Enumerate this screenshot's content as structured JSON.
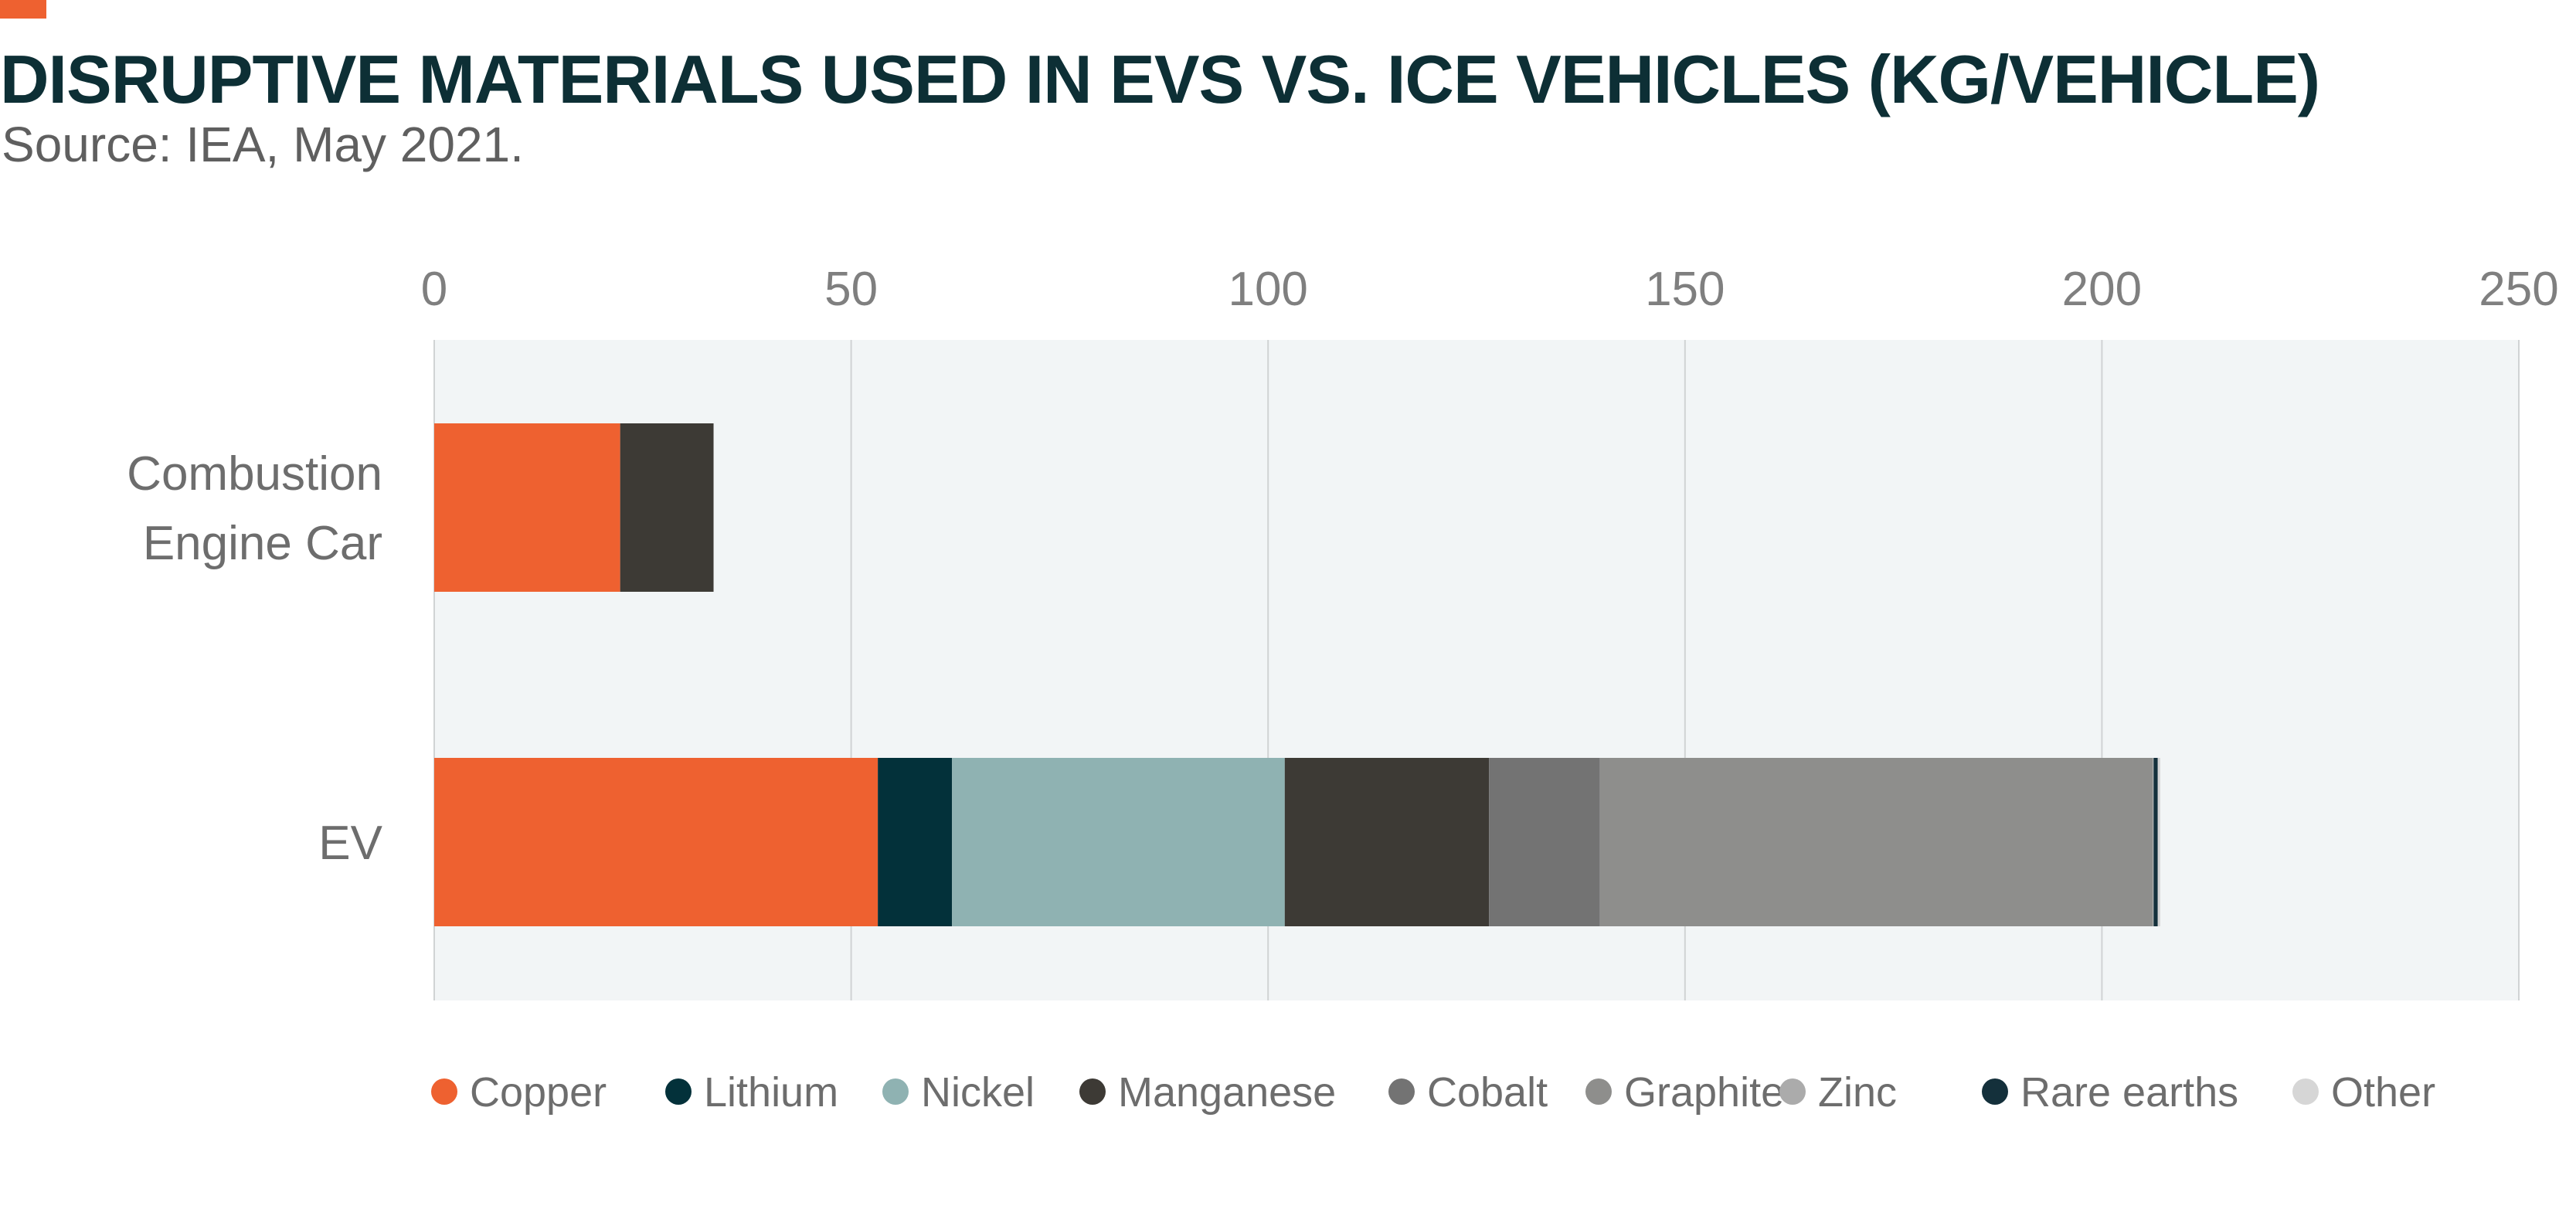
{
  "header": {
    "title": "DISRUPTIVE MATERIALS USED IN EVS VS. ICE VEHICLES (KG/VEHICLE)",
    "subtitle": "Source: IEA, May 2021."
  },
  "colors": {
    "accent": "#ee6130",
    "title": "#0d2f35",
    "plot_background": "#f2f5f6",
    "gridline": "#d0d3d4"
  },
  "chart_data": {
    "type": "bar",
    "orientation": "horizontal",
    "stacked": true,
    "title": "DISRUPTIVE MATERIALS USED IN EVS VS. ICE VEHICLES (KG/VEHICLE)",
    "subtitle": "Source: IEA, May 2021.",
    "xlabel": "",
    "ylabel": "",
    "xlim": [
      0,
      250
    ],
    "x_ticks": [
      0,
      50,
      100,
      150,
      200,
      250
    ],
    "grid": true,
    "legend_position": "bottom",
    "categories": [
      {
        "label_lines": [
          "Combustion",
          "Engine Car"
        ]
      },
      {
        "label_lines": [
          "EV"
        ]
      }
    ],
    "series": [
      {
        "name": "Copper",
        "color": "#ee6130",
        "values": [
          22.3,
          53.2
        ]
      },
      {
        "name": "Lithium",
        "color": "#03313a",
        "values": [
          0,
          8.9
        ]
      },
      {
        "name": "Nickel",
        "color": "#8fb2b2",
        "values": [
          0,
          39.9
        ]
      },
      {
        "name": "Manganese",
        "color": "#3d3a35",
        "values": [
          11.2,
          24.5
        ]
      },
      {
        "name": "Cobalt",
        "color": "#737373",
        "values": [
          0,
          13.3
        ]
      },
      {
        "name": "Graphite",
        "color": "#8e8e8c",
        "values": [
          0,
          66.3
        ]
      },
      {
        "name": "Zinc",
        "color": "#ababab",
        "values": [
          0,
          0.1
        ]
      },
      {
        "name": "Rare earths",
        "color": "#14303b",
        "values": [
          0,
          0.5
        ]
      },
      {
        "name": "Other",
        "color": "#d6d6d6",
        "values": [
          0,
          0.3
        ]
      }
    ]
  }
}
